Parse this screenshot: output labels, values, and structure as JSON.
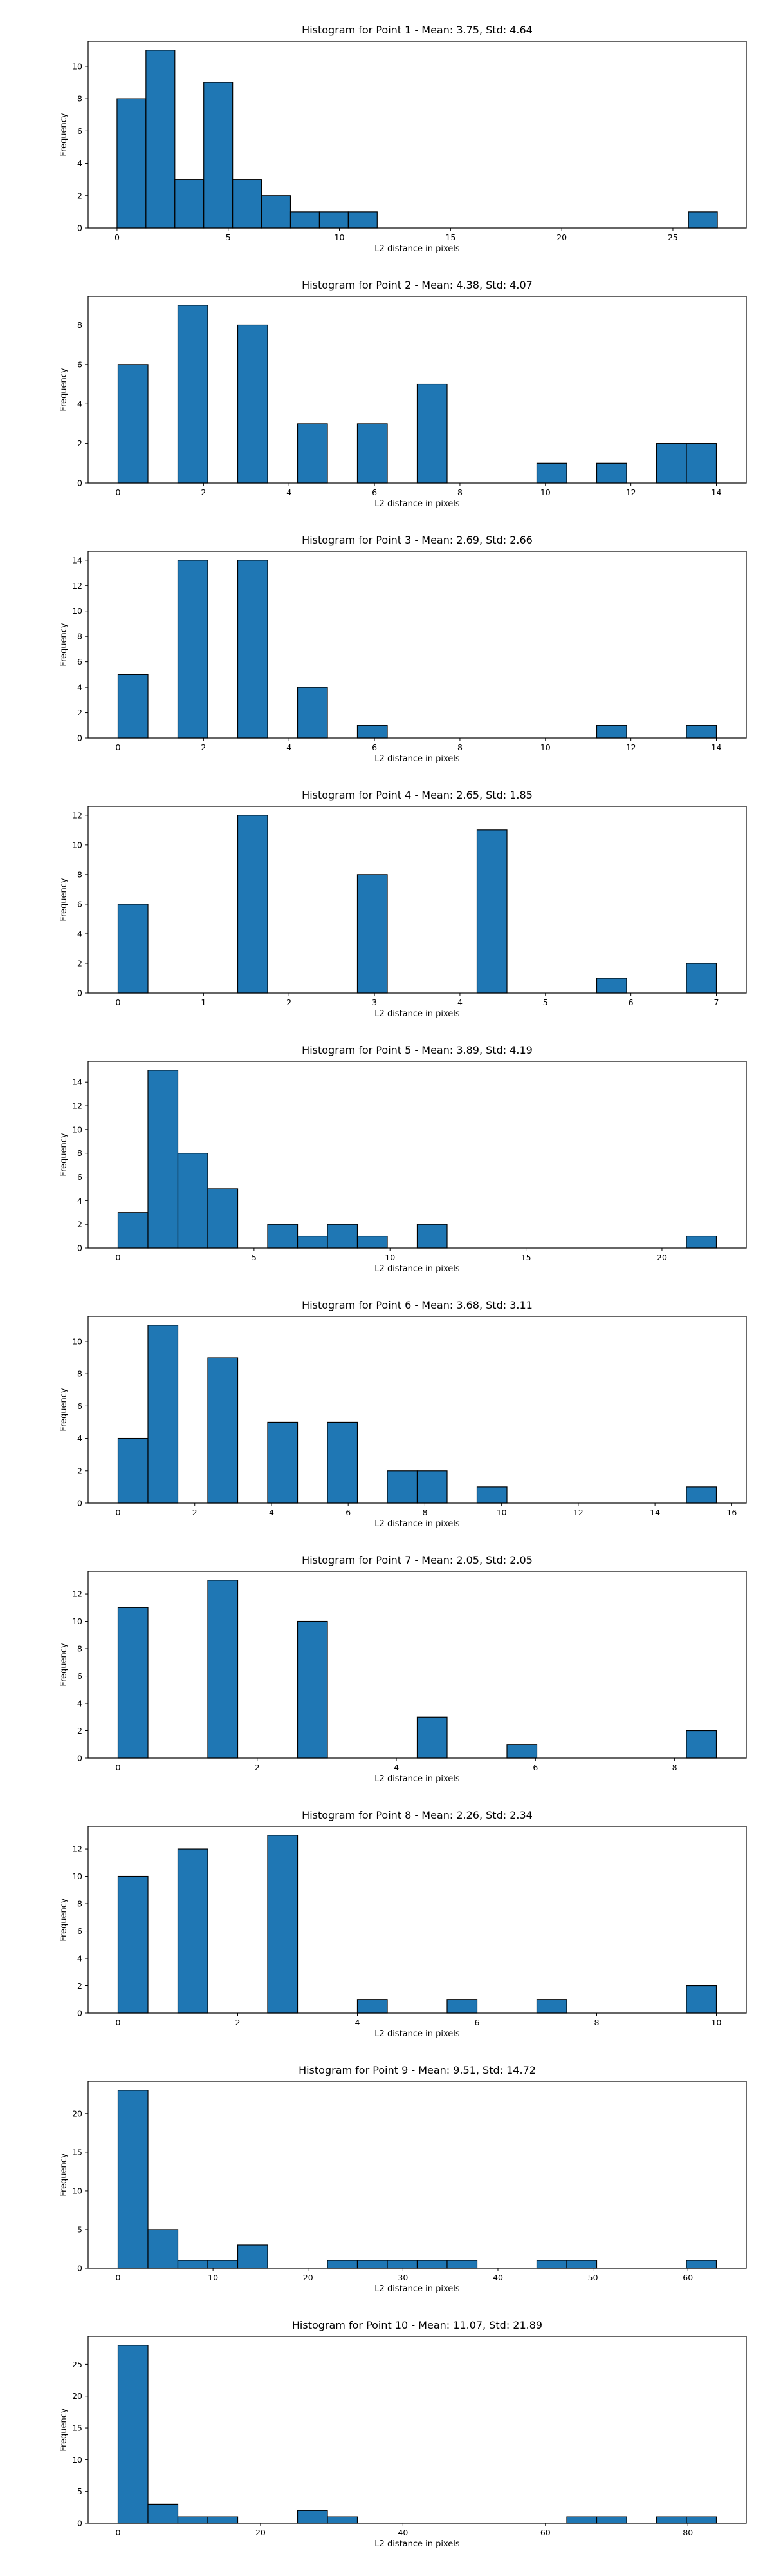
{
  "chart_data": [
    {
      "type": "bar",
      "title": "Histogram for Point 1 - Mean: 3.75, Std: 4.64",
      "xlabel": "L2 distance in pixels",
      "ylabel": "Frequency",
      "xlim": [
        -1.3,
        28.3
      ],
      "ylim": [
        0,
        11.55
      ],
      "xticks": [
        0,
        5,
        10,
        15,
        20,
        25
      ],
      "yticks": [
        0,
        2,
        4,
        6,
        8,
        10
      ],
      "bins": [
        {
          "x0": 0.0,
          "x1": 1.3,
          "value": 8
        },
        {
          "x0": 1.3,
          "x1": 2.6,
          "value": 11
        },
        {
          "x0": 2.6,
          "x1": 3.9,
          "value": 3
        },
        {
          "x0": 3.9,
          "x1": 5.2,
          "value": 9
        },
        {
          "x0": 5.2,
          "x1": 6.5,
          "value": 3
        },
        {
          "x0": 6.5,
          "x1": 7.8,
          "value": 2
        },
        {
          "x0": 7.8,
          "x1": 9.1,
          "value": 1
        },
        {
          "x0": 9.1,
          "x1": 10.4,
          "value": 1
        },
        {
          "x0": 10.4,
          "x1": 11.7,
          "value": 1
        },
        {
          "x0": 25.7,
          "x1": 27.0,
          "value": 1
        }
      ]
    },
    {
      "type": "bar",
      "title": "Histogram for Point 2 - Mean: 4.38, Std: 4.07",
      "xlabel": "L2 distance in pixels",
      "ylabel": "Frequency",
      "xlim": [
        -0.7,
        14.7
      ],
      "ylim": [
        0,
        9.45
      ],
      "xticks": [
        0,
        2,
        4,
        6,
        8,
        10,
        12,
        14
      ],
      "yticks": [
        0,
        2,
        4,
        6,
        8
      ],
      "bins": [
        {
          "x0": 0.0,
          "x1": 0.7,
          "value": 6
        },
        {
          "x0": 1.4,
          "x1": 2.1,
          "value": 9
        },
        {
          "x0": 2.8,
          "x1": 3.5,
          "value": 8
        },
        {
          "x0": 4.2,
          "x1": 4.9,
          "value": 3
        },
        {
          "x0": 5.6,
          "x1": 6.3,
          "value": 3
        },
        {
          "x0": 7.0,
          "x1": 7.7,
          "value": 5
        },
        {
          "x0": 9.8,
          "x1": 10.5,
          "value": 1
        },
        {
          "x0": 11.2,
          "x1": 11.9,
          "value": 1
        },
        {
          "x0": 12.6,
          "x1": 13.3,
          "value": 2
        },
        {
          "x0": 13.3,
          "x1": 14.0,
          "value": 2
        }
      ]
    },
    {
      "type": "bar",
      "title": "Histogram for Point 3 - Mean: 2.69, Std: 2.66",
      "xlabel": "L2 distance in pixels",
      "ylabel": "Frequency",
      "xlim": [
        -0.7,
        14.7
      ],
      "ylim": [
        0,
        14.7
      ],
      "xticks": [
        0,
        2,
        4,
        6,
        8,
        10,
        12,
        14
      ],
      "yticks": [
        0,
        2,
        4,
        6,
        8,
        10,
        12,
        14
      ],
      "bins": [
        {
          "x0": 0.0,
          "x1": 0.7,
          "value": 5
        },
        {
          "x0": 1.4,
          "x1": 2.1,
          "value": 14
        },
        {
          "x0": 2.8,
          "x1": 3.5,
          "value": 14
        },
        {
          "x0": 4.2,
          "x1": 4.9,
          "value": 4
        },
        {
          "x0": 5.6,
          "x1": 6.3,
          "value": 1
        },
        {
          "x0": 11.2,
          "x1": 11.9,
          "value": 1
        },
        {
          "x0": 13.3,
          "x1": 14.0,
          "value": 1
        }
      ]
    },
    {
      "type": "bar",
      "title": "Histogram for Point 4 - Mean: 2.65, Std: 1.85",
      "xlabel": "L2 distance in pixels",
      "ylabel": "Frequency",
      "xlim": [
        -0.35,
        7.35
      ],
      "ylim": [
        0,
        12.6
      ],
      "xticks": [
        0,
        1,
        2,
        3,
        4,
        5,
        6,
        7
      ],
      "yticks": [
        0,
        2,
        4,
        6,
        8,
        10,
        12
      ],
      "bins": [
        {
          "x0": 0.0,
          "x1": 0.35,
          "value": 6
        },
        {
          "x0": 1.4,
          "x1": 1.75,
          "value": 12
        },
        {
          "x0": 2.8,
          "x1": 3.15,
          "value": 8
        },
        {
          "x0": 4.2,
          "x1": 4.55,
          "value": 11
        },
        {
          "x0": 5.6,
          "x1": 5.95,
          "value": 1
        },
        {
          "x0": 6.65,
          "x1": 7.0,
          "value": 2
        }
      ]
    },
    {
      "type": "bar",
      "title": "Histogram for Point 5 - Mean: 3.89, Std: 4.19",
      "xlabel": "L2 distance in pixels",
      "ylabel": "Frequency",
      "xlim": [
        -1.1,
        23.1
      ],
      "ylim": [
        0,
        15.75
      ],
      "xticks": [
        0,
        5,
        10,
        15,
        20
      ],
      "yticks": [
        0,
        2,
        4,
        6,
        8,
        10,
        12,
        14
      ],
      "bins": [
        {
          "x0": 0.0,
          "x1": 1.1,
          "value": 3
        },
        {
          "x0": 1.1,
          "x1": 2.2,
          "value": 15
        },
        {
          "x0": 2.2,
          "x1": 3.3,
          "value": 8
        },
        {
          "x0": 3.3,
          "x1": 4.4,
          "value": 5
        },
        {
          "x0": 5.5,
          "x1": 6.6,
          "value": 2
        },
        {
          "x0": 6.6,
          "x1": 7.7,
          "value": 1
        },
        {
          "x0": 7.7,
          "x1": 8.8,
          "value": 2
        },
        {
          "x0": 8.8,
          "x1": 9.9,
          "value": 1
        },
        {
          "x0": 11.0,
          "x1": 12.1,
          "value": 2
        },
        {
          "x0": 20.9,
          "x1": 22.0,
          "value": 1
        }
      ]
    },
    {
      "type": "bar",
      "title": "Histogram for Point 6 - Mean: 3.68, Std: 3.11",
      "xlabel": "L2 distance in pixels",
      "ylabel": "Frequency",
      "xlim": [
        -0.78,
        16.38
      ],
      "ylim": [
        0,
        11.55
      ],
      "xticks": [
        0,
        2,
        4,
        6,
        8,
        10,
        12,
        14,
        16
      ],
      "yticks": [
        0,
        2,
        4,
        6,
        8,
        10
      ],
      "bins": [
        {
          "x0": 0.0,
          "x1": 0.78,
          "value": 4
        },
        {
          "x0": 0.78,
          "x1": 1.56,
          "value": 11
        },
        {
          "x0": 2.34,
          "x1": 3.12,
          "value": 9
        },
        {
          "x0": 3.9,
          "x1": 4.68,
          "value": 5
        },
        {
          "x0": 5.46,
          "x1": 6.24,
          "value": 5
        },
        {
          "x0": 7.02,
          "x1": 7.8,
          "value": 2
        },
        {
          "x0": 7.8,
          "x1": 8.58,
          "value": 2
        },
        {
          "x0": 9.36,
          "x1": 10.14,
          "value": 1
        },
        {
          "x0": 14.82,
          "x1": 15.6,
          "value": 1
        }
      ]
    },
    {
      "type": "bar",
      "title": "Histogram for Point 7 - Mean: 2.05, Std: 2.05",
      "xlabel": "L2 distance in pixels",
      "ylabel": "Frequency",
      "xlim": [
        -0.43,
        9.03
      ],
      "ylim": [
        0,
        13.65
      ],
      "xticks": [
        0,
        2,
        4,
        6,
        8
      ],
      "yticks": [
        0,
        2,
        4,
        6,
        8,
        10,
        12
      ],
      "bins": [
        {
          "x0": 0.0,
          "x1": 0.43,
          "value": 11
        },
        {
          "x0": 1.29,
          "x1": 1.72,
          "value": 13
        },
        {
          "x0": 2.58,
          "x1": 3.01,
          "value": 10
        },
        {
          "x0": 4.3,
          "x1": 4.73,
          "value": 3
        },
        {
          "x0": 5.59,
          "x1": 6.02,
          "value": 1
        },
        {
          "x0": 8.17,
          "x1": 8.6,
          "value": 2
        }
      ]
    },
    {
      "type": "bar",
      "title": "Histogram for Point 8 - Mean: 2.26, Std: 2.34",
      "xlabel": "L2 distance in pixels",
      "ylabel": "Frequency",
      "xlim": [
        -0.5,
        10.5
      ],
      "ylim": [
        0,
        13.65
      ],
      "xticks": [
        0,
        2,
        4,
        6,
        8,
        10
      ],
      "yticks": [
        0,
        2,
        4,
        6,
        8,
        10,
        12
      ],
      "bins": [
        {
          "x0": 0.0,
          "x1": 0.5,
          "value": 10
        },
        {
          "x0": 1.0,
          "x1": 1.5,
          "value": 12
        },
        {
          "x0": 2.5,
          "x1": 3.0,
          "value": 13
        },
        {
          "x0": 4.0,
          "x1": 4.5,
          "value": 1
        },
        {
          "x0": 5.5,
          "x1": 6.0,
          "value": 1
        },
        {
          "x0": 7.0,
          "x1": 7.5,
          "value": 1
        },
        {
          "x0": 9.5,
          "x1": 10.0,
          "value": 2
        }
      ]
    },
    {
      "type": "bar",
      "title": "Histogram for Point 9 - Mean: 9.51, Std: 14.72",
      "xlabel": "L2 distance in pixels",
      "ylabel": "Frequency",
      "xlim": [
        -3.15,
        66.15
      ],
      "ylim": [
        0,
        24.15
      ],
      "xticks": [
        0,
        10,
        20,
        30,
        40,
        50,
        60
      ],
      "yticks": [
        0,
        5,
        10,
        15,
        20
      ],
      "bins": [
        {
          "x0": 0.0,
          "x1": 3.15,
          "value": 23
        },
        {
          "x0": 3.15,
          "x1": 6.3,
          "value": 5
        },
        {
          "x0": 6.3,
          "x1": 9.45,
          "value": 1
        },
        {
          "x0": 9.45,
          "x1": 12.6,
          "value": 1
        },
        {
          "x0": 12.6,
          "x1": 15.75,
          "value": 3
        },
        {
          "x0": 22.05,
          "x1": 25.2,
          "value": 1
        },
        {
          "x0": 25.2,
          "x1": 28.35,
          "value": 1
        },
        {
          "x0": 28.35,
          "x1": 31.5,
          "value": 1
        },
        {
          "x0": 31.5,
          "x1": 34.65,
          "value": 1
        },
        {
          "x0": 34.65,
          "x1": 37.8,
          "value": 1
        },
        {
          "x0": 44.1,
          "x1": 47.25,
          "value": 1
        },
        {
          "x0": 47.25,
          "x1": 50.4,
          "value": 1
        },
        {
          "x0": 59.85,
          "x1": 63.0,
          "value": 1
        }
      ]
    },
    {
      "type": "bar",
      "title": "Histogram for Point 10 - Mean: 11.07, Std: 21.89",
      "xlabel": "L2 distance in pixels",
      "ylabel": "Frequency",
      "xlim": [
        -4.2,
        88.2
      ],
      "ylim": [
        0,
        29.4
      ],
      "xticks": [
        0,
        20,
        40,
        60,
        80
      ],
      "yticks": [
        0,
        5,
        10,
        15,
        20,
        25
      ],
      "bins": [
        {
          "x0": 0.0,
          "x1": 4.2,
          "value": 28
        },
        {
          "x0": 4.2,
          "x1": 8.4,
          "value": 3
        },
        {
          "x0": 8.4,
          "x1": 12.6,
          "value": 1
        },
        {
          "x0": 12.6,
          "x1": 16.8,
          "value": 1
        },
        {
          "x0": 25.2,
          "x1": 29.4,
          "value": 2
        },
        {
          "x0": 29.4,
          "x1": 33.6,
          "value": 1
        },
        {
          "x0": 63.0,
          "x1": 67.2,
          "value": 1
        },
        {
          "x0": 67.2,
          "x1": 71.4,
          "value": 1
        },
        {
          "x0": 75.6,
          "x1": 79.8,
          "value": 1
        },
        {
          "x0": 79.8,
          "x1": 84.0,
          "value": 1
        }
      ]
    }
  ]
}
